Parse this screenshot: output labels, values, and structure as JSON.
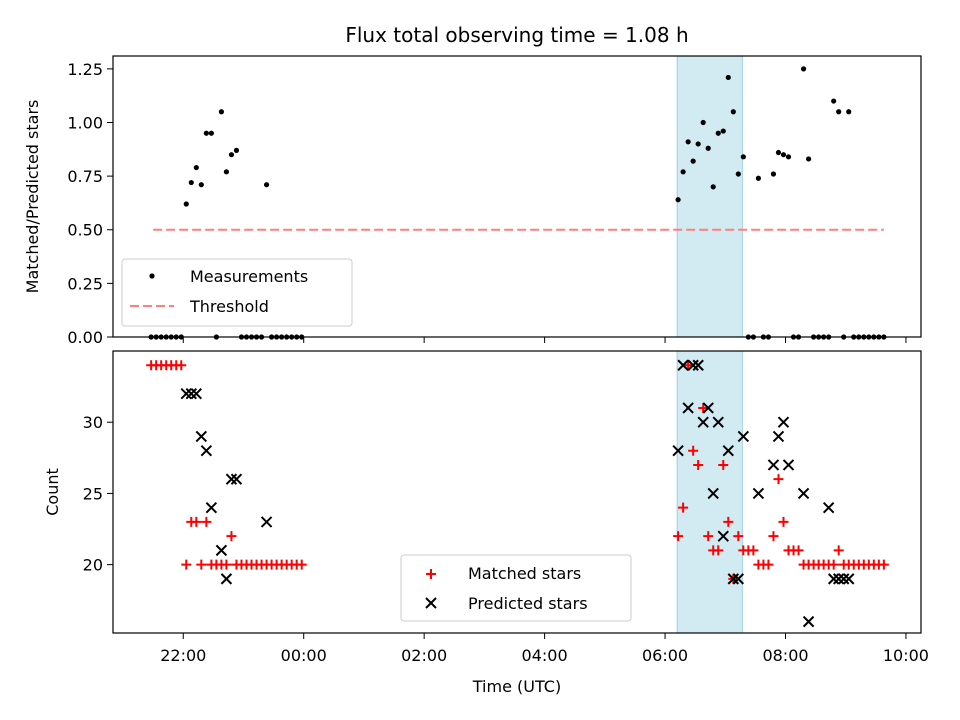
{
  "chart_data": [
    {
      "type": "scatter",
      "title": "Flux total observing time = 1.08 h",
      "ylabel": "Matched/Predicted stars",
      "ylim": [
        0,
        1.31
      ],
      "yticks": [
        "0.00",
        "0.25",
        "0.50",
        "0.75",
        "1.00",
        "1.25"
      ],
      "ytick_values": [
        0,
        0.25,
        0.5,
        0.75,
        1.0,
        1.25
      ],
      "legend_position": "lower-left",
      "highlight_span": {
        "start": "06:12",
        "end": "07:17",
        "color": "#add8e6"
      },
      "series": [
        {
          "name": "Measurements",
          "marker": "dot",
          "color": "#000000",
          "x": [
            "21:28",
            "21:33",
            "21:38",
            "21:43",
            "21:48",
            "21:53",
            "21:58",
            "22:03",
            "22:08",
            "22:13",
            "22:18",
            "22:23",
            "22:28",
            "22:33",
            "22:38",
            "22:43",
            "22:48",
            "22:53",
            "22:58",
            "23:03",
            "23:08",
            "23:13",
            "23:18",
            "23:23",
            "23:28",
            "23:33",
            "23:38",
            "23:43",
            "23:48",
            "23:53",
            "23:58",
            "06:13",
            "06:18",
            "06:23",
            "06:28",
            "06:33",
            "06:38",
            "06:43",
            "06:48",
            "06:53",
            "06:58",
            "07:03",
            "07:08",
            "07:13",
            "07:18",
            "07:23",
            "07:28",
            "07:33",
            "07:38",
            "07:43",
            "07:48",
            "07:53",
            "07:58",
            "08:03",
            "08:08",
            "08:13",
            "08:18",
            "08:23",
            "08:28",
            "08:33",
            "08:38",
            "08:43",
            "08:48",
            "08:53",
            "08:58",
            "09:03",
            "09:08",
            "09:13",
            "09:18",
            "09:23",
            "09:28",
            "09:33",
            "09:38"
          ],
          "y": [
            0,
            0,
            0,
            0,
            0,
            0,
            0,
            0.62,
            0.72,
            0.79,
            0.71,
            0.95,
            0.95,
            0,
            1.05,
            0.77,
            0.85,
            0.87,
            0,
            0,
            0,
            0,
            0,
            0.71,
            0,
            0,
            0,
            0,
            0,
            0,
            0,
            0.64,
            0.77,
            0.91,
            0.82,
            0.9,
            1.0,
            0.88,
            0.7,
            0.95,
            0.96,
            1.21,
            1.05,
            0.76,
            0.84,
            0,
            0,
            0.74,
            0,
            0,
            0.76,
            0.86,
            0.85,
            0.84,
            0,
            0,
            1.25,
            0.83,
            0,
            0,
            0,
            0,
            1.1,
            1.05,
            0,
            1.05,
            0,
            0,
            0,
            0,
            0,
            0,
            0
          ]
        },
        {
          "name": "Threshold",
          "marker": "dashed-line",
          "color": "#ff7f7f",
          "x": [
            "21:30",
            "09:38"
          ],
          "y": [
            0.5,
            0.5
          ]
        }
      ]
    },
    {
      "type": "scatter",
      "xlabel": "Time (UTC)",
      "ylabel": "Count",
      "ylim": [
        15.2,
        35
      ],
      "yticks": [
        "20",
        "25",
        "30"
      ],
      "ytick_values": [
        20,
        25,
        30
      ],
      "xlim": [
        "20:50",
        "10:15"
      ],
      "xticks": [
        "22:00",
        "00:00",
        "02:00",
        "04:00",
        "06:00",
        "08:00",
        "10:00"
      ],
      "legend_position": "lower-center",
      "highlight_span": {
        "start": "06:12",
        "end": "07:17",
        "color": "#add8e6"
      },
      "series": [
        {
          "name": "Matched stars",
          "marker": "plus",
          "color": "#ff0000",
          "x": [
            "21:28",
            "21:33",
            "21:38",
            "21:43",
            "21:48",
            "21:53",
            "21:58",
            "22:03",
            "22:08",
            "22:13",
            "22:18",
            "22:23",
            "22:28",
            "22:33",
            "22:38",
            "22:43",
            "22:48",
            "22:53",
            "22:58",
            "23:03",
            "23:08",
            "23:13",
            "23:18",
            "23:23",
            "23:28",
            "23:33",
            "23:38",
            "23:43",
            "23:48",
            "23:53",
            "23:58",
            "06:13",
            "06:18",
            "06:23",
            "06:28",
            "06:33",
            "06:38",
            "06:43",
            "06:48",
            "06:53",
            "06:58",
            "07:03",
            "07:08",
            "07:13",
            "07:18",
            "07:23",
            "07:28",
            "07:33",
            "07:38",
            "07:43",
            "07:48",
            "07:53",
            "07:58",
            "08:03",
            "08:08",
            "08:13",
            "08:18",
            "08:23",
            "08:28",
            "08:33",
            "08:38",
            "08:43",
            "08:48",
            "08:53",
            "08:58",
            "09:03",
            "09:08",
            "09:13",
            "09:18",
            "09:23",
            "09:28",
            "09:33",
            "09:38"
          ],
          "y": [
            34,
            34,
            34,
            34,
            34,
            34,
            34,
            20,
            23,
            23,
            20,
            23,
            20,
            20,
            20,
            20,
            22,
            20,
            20,
            20,
            20,
            20,
            20,
            20,
            20,
            20,
            20,
            20,
            20,
            20,
            20,
            22,
            24,
            34,
            28,
            27,
            31,
            22,
            21,
            21,
            27,
            23,
            19,
            22,
            21,
            21,
            21,
            20,
            20,
            20,
            22,
            26,
            23,
            21,
            21,
            21,
            20,
            20,
            20,
            20,
            20,
            20,
            20,
            21,
            20,
            20,
            20,
            20,
            20,
            20,
            20,
            20,
            20
          ]
        },
        {
          "name": "Predicted stars",
          "marker": "x",
          "color": "#000000",
          "x": [
            "22:03",
            "22:08",
            "22:13",
            "22:18",
            "22:23",
            "22:28",
            "22:38",
            "22:43",
            "22:48",
            "22:53",
            "23:23",
            "06:13",
            "06:18",
            "06:23",
            "06:28",
            "06:33",
            "06:38",
            "06:43",
            "06:48",
            "06:53",
            "06:58",
            "07:03",
            "07:08",
            "07:13",
            "07:18",
            "07:33",
            "07:48",
            "07:53",
            "07:58",
            "08:03",
            "08:18",
            "08:23",
            "08:43",
            "08:48",
            "08:53",
            "08:58",
            "09:03"
          ],
          "y": [
            32,
            32,
            32,
            29,
            28,
            24,
            21,
            19,
            26,
            26,
            23,
            28,
            34,
            31,
            34,
            34,
            30,
            31,
            25,
            30,
            22,
            28,
            19,
            19,
            29,
            25,
            27,
            29,
            30,
            27,
            25,
            16,
            24,
            19,
            19,
            19,
            19
          ]
        }
      ]
    }
  ]
}
